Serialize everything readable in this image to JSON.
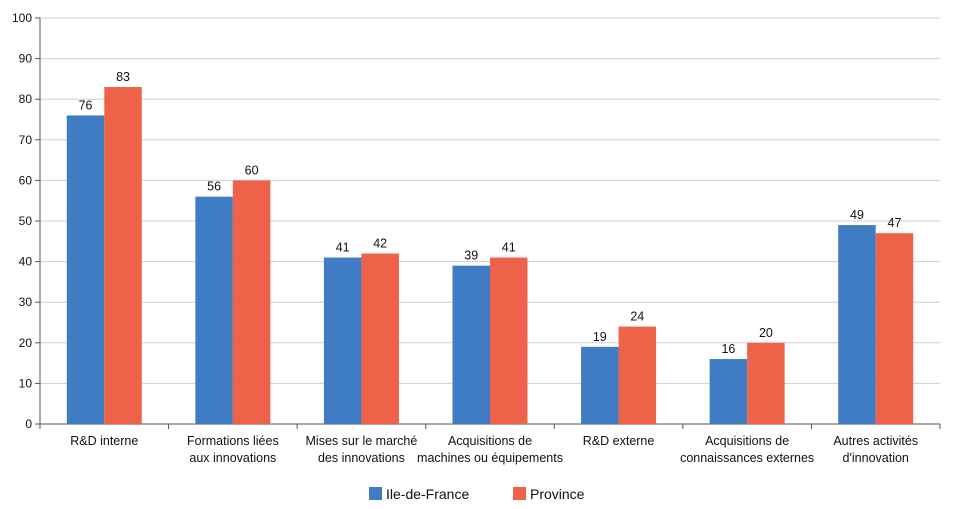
{
  "chart_data": {
    "type": "bar",
    "categories": [
      [
        "R&D interne"
      ],
      [
        "Formations liées",
        "aux innovations"
      ],
      [
        "Mises sur le marché",
        "des innovations"
      ],
      [
        "Acquisitions de",
        "machines ou équipements"
      ],
      [
        "R&D externe"
      ],
      [
        "Acquisitions de",
        "connaissances externes"
      ],
      [
        "Autres activités",
        "d'innovation"
      ]
    ],
    "series": [
      {
        "name": "Ile-de-France",
        "color": "#3f7cc4",
        "values": [
          76,
          56,
          41,
          39,
          19,
          16,
          49
        ]
      },
      {
        "name": "Province",
        "color": "#ef624a",
        "values": [
          83,
          60,
          42,
          41,
          24,
          20,
          47
        ]
      }
    ],
    "data_labels": [
      [
        "76",
        "56",
        "41",
        "39",
        "19",
        "16",
        "49"
      ],
      [
        "83",
        "60",
        "42",
        "41",
        "24",
        "20",
        "47"
      ]
    ],
    "y_ticks": [
      0,
      10,
      20,
      30,
      40,
      50,
      60,
      70,
      80,
      90,
      100
    ],
    "ylim": [
      0,
      100
    ],
    "grid": true,
    "legend_position": "bottom-center",
    "title": "",
    "xlabel": "",
    "ylabel": ""
  }
}
